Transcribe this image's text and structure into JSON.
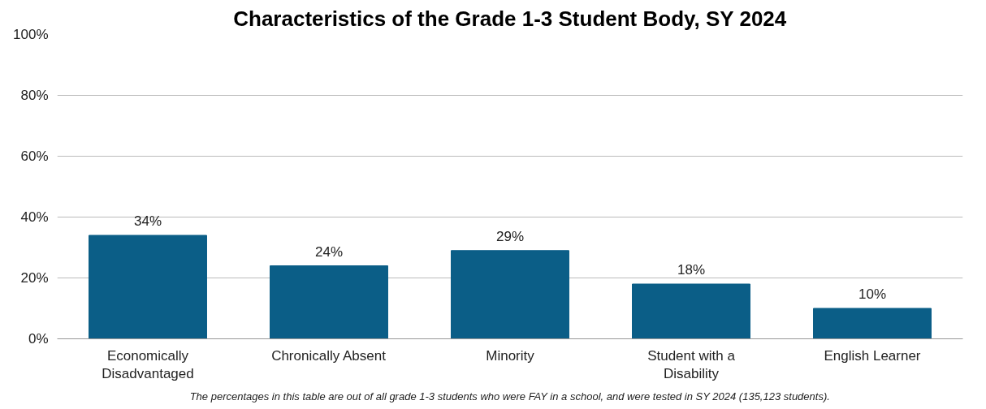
{
  "chart_data": {
    "type": "bar",
    "title": "Characteristics of the Grade 1-3 Student Body, SY 2024",
    "categories": [
      "Economically Disadvantaged",
      "Chronically Absent",
      "Minority",
      "Student with a Disability",
      "English Learner"
    ],
    "values": [
      34,
      24,
      29,
      18,
      10
    ],
    "value_labels": [
      "34%",
      "24%",
      "29%",
      "18%",
      "10%"
    ],
    "color": "#0b5e87",
    "ylim": [
      0,
      100
    ],
    "yticks": [
      {
        "value": 0,
        "label": "0%"
      },
      {
        "value": 20,
        "label": "20%"
      },
      {
        "value": 40,
        "label": "40%"
      },
      {
        "value": 60,
        "label": "60%"
      },
      {
        "value": 80,
        "label": "80%"
      },
      {
        "value": 100,
        "label": "100%"
      }
    ],
    "grid": "y",
    "annotations": [
      "The percentages in this table are out of all grade 1-3 students who were FAY in a school, and were tested in SY 2024 (135,123 students)."
    ]
  }
}
